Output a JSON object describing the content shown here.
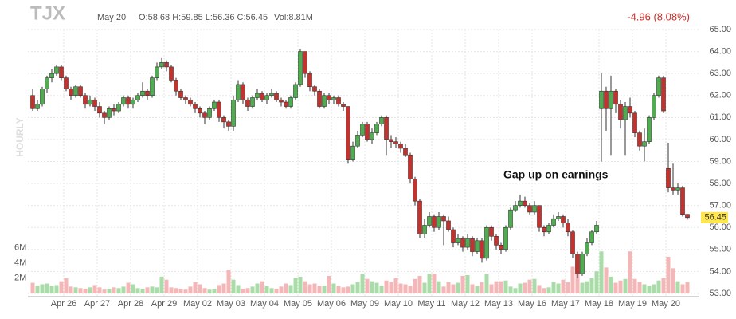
{
  "chart_data": {
    "type": "candlestick",
    "title": "TJX",
    "date": "May 20",
    "ohlc": "O:58.68 H:59.85 L:56.36 C:56.45",
    "volume_text": "Vol:8.81M",
    "change": "-4.96 (8.08%)",
    "ylabel": "HOURLY",
    "annotation": "Gap up on earnings",
    "up_color": "#4cae4c",
    "down_color": "#c9302c",
    "up_volume_color": "#aadcaa",
    "down_volume_color": "#f4b6b6",
    "ylim": [
      53,
      65
    ],
    "yticks": [
      {
        "value": 53,
        "label": "53.00"
      },
      {
        "value": 54,
        "label": "54.00"
      },
      {
        "value": 55,
        "label": "55.00"
      },
      {
        "value": 56,
        "label": "56.00"
      },
      {
        "value": 57,
        "label": "57.00"
      },
      {
        "value": 58,
        "label": "58.00"
      },
      {
        "value": 59,
        "label": "59.00"
      },
      {
        "value": 60,
        "label": "60.00"
      },
      {
        "value": 61,
        "label": "61.00"
      },
      {
        "value": 62,
        "label": "62.00"
      },
      {
        "value": 63,
        "label": "63.00"
      },
      {
        "value": 64,
        "label": "64.00"
      },
      {
        "value": 65,
        "label": "65.00"
      }
    ],
    "y2lim": [
      0,
      34.5
    ],
    "y2ticks": [
      {
        "value": 2,
        "label": "2M"
      },
      {
        "value": 4,
        "label": "4M"
      },
      {
        "value": 6,
        "label": "6M"
      }
    ],
    "categories": [
      null,
      null,
      null,
      null,
      null,
      null,
      null,
      "Apr 26",
      null,
      null,
      null,
      null,
      null,
      null,
      "Apr 27",
      null,
      null,
      null,
      null,
      null,
      null,
      "Apr 28",
      null,
      null,
      null,
      null,
      null,
      null,
      "Apr 29",
      null,
      null,
      null,
      null,
      null,
      null,
      "May 02",
      null,
      null,
      null,
      null,
      null,
      null,
      "May 03",
      null,
      null,
      null,
      null,
      null,
      null,
      "May 04",
      null,
      null,
      null,
      null,
      null,
      null,
      "May 05",
      null,
      null,
      null,
      null,
      null,
      null,
      "May 06",
      null,
      null,
      null,
      null,
      null,
      null,
      "May 09",
      null,
      null,
      null,
      null,
      null,
      null,
      "May 10",
      null,
      null,
      null,
      null,
      null,
      null,
      "May 11",
      null,
      null,
      null,
      null,
      null,
      null,
      "May 12",
      null,
      null,
      null,
      null,
      null,
      null,
      "May 13",
      null,
      null,
      null,
      null,
      null,
      null,
      "May 16",
      null,
      null,
      null,
      null,
      null,
      null,
      "May 17",
      null,
      null,
      null,
      null,
      null,
      null,
      "May 18",
      null,
      null,
      null,
      null,
      null,
      null,
      "May 19",
      null,
      null,
      null,
      null,
      null,
      null,
      "May 20",
      null,
      null,
      null,
      null
    ],
    "open": [
      62.0,
      61.4,
      61.6,
      62.3,
      62.8,
      63.0,
      63.3,
      62.8,
      62.3,
      62.0,
      62.4,
      62.0,
      61.6,
      61.8,
      61.5,
      61.2,
      61.0,
      61.4,
      61.3,
      61.6,
      61.9,
      61.6,
      61.8,
      62.0,
      62.2,
      62.0,
      62.8,
      63.3,
      63.5,
      63.3,
      62.7,
      62.2,
      61.9,
      61.8,
      61.6,
      61.4,
      61.2,
      61.0,
      61.4,
      61.7,
      61.0,
      60.8,
      60.6,
      61.8,
      62.5,
      61.8,
      61.5,
      61.9,
      62.1,
      61.8,
      62.0,
      62.1,
      61.8,
      61.7,
      61.5,
      61.9,
      62.5,
      64.0,
      63.0,
      62.4,
      62.2,
      61.5,
      62.0,
      61.8,
      61.9,
      61.6,
      61.5,
      59.1,
      59.7,
      60.2,
      60.7,
      60.0,
      60.3,
      60.7,
      61.0,
      60.0,
      59.9,
      59.8,
      59.6,
      59.3,
      58.2,
      57.2,
      55.7,
      56.1,
      56.5,
      56.0,
      56.5,
      56.3,
      55.9,
      55.3,
      55.5,
      55.1,
      55.5,
      54.9,
      55.4,
      54.6,
      56.0,
      55.6,
      55.2,
      55.0,
      56.0,
      56.8,
      57.0,
      57.2,
      57.0,
      56.7,
      57.0,
      56.0,
      55.8,
      56.1,
      56.4,
      56.5,
      56.2,
      55.8,
      54.8,
      53.9,
      54.8,
      55.3,
      55.8,
      61.4,
      62.2,
      61.4,
      62.2,
      61.6,
      60.9,
      61.5,
      61.2,
      60.3,
      59.7,
      59.9,
      61.0,
      62.0,
      62.8,
      58.68,
      57.8,
      57.7,
      57.8,
      56.6
    ],
    "close": [
      61.4,
      61.6,
      62.3,
      62.8,
      63.0,
      63.3,
      62.8,
      62.3,
      62.0,
      62.4,
      62.0,
      61.6,
      61.8,
      61.5,
      61.2,
      61.0,
      61.4,
      61.3,
      61.6,
      61.9,
      61.6,
      61.8,
      62.0,
      62.2,
      62.0,
      62.8,
      63.3,
      63.5,
      63.3,
      62.7,
      62.2,
      61.9,
      61.8,
      61.6,
      61.4,
      61.2,
      61.0,
      61.4,
      61.7,
      61.0,
      60.8,
      60.6,
      61.8,
      62.5,
      61.8,
      61.5,
      61.9,
      62.1,
      61.8,
      62.0,
      62.1,
      61.8,
      61.7,
      61.5,
      61.9,
      62.5,
      64.0,
      63.0,
      62.4,
      62.2,
      61.5,
      62.0,
      61.8,
      61.9,
      61.6,
      61.5,
      59.1,
      59.7,
      60.2,
      60.7,
      60.0,
      60.3,
      60.7,
      61.0,
      60.0,
      59.9,
      59.8,
      59.6,
      59.3,
      58.2,
      57.2,
      55.7,
      56.1,
      56.5,
      56.0,
      56.5,
      56.3,
      55.9,
      55.3,
      55.5,
      55.1,
      55.5,
      54.9,
      55.4,
      54.6,
      56.0,
      55.6,
      55.2,
      55.0,
      56.0,
      56.8,
      57.0,
      57.2,
      57.0,
      56.7,
      57.0,
      56.0,
      55.8,
      56.1,
      56.4,
      56.5,
      56.2,
      55.8,
      54.8,
      53.9,
      54.8,
      55.3,
      55.8,
      56.1,
      62.2,
      61.4,
      62.2,
      61.6,
      60.9,
      61.5,
      61.2,
      60.3,
      59.7,
      59.9,
      61.0,
      62.0,
      62.8,
      61.3,
      57.8,
      57.7,
      57.8,
      56.6,
      56.45
    ],
    "high": [
      62.3,
      61.8,
      62.4,
      62.9,
      63.2,
      63.4,
      63.4,
      62.9,
      62.4,
      62.5,
      62.5,
      62.1,
      62.0,
      61.9,
      61.7,
      61.3,
      61.5,
      61.6,
      61.7,
      62.0,
      62.0,
      61.9,
      62.1,
      62.6,
      62.3,
      62.9,
      63.5,
      63.7,
      63.6,
      63.4,
      62.8,
      62.3,
      62.0,
      61.9,
      61.7,
      61.5,
      61.3,
      61.5,
      61.8,
      61.8,
      61.1,
      60.9,
      62.0,
      62.7,
      62.6,
      61.9,
      62.0,
      62.3,
      62.2,
      62.1,
      62.3,
      62.2,
      61.9,
      61.8,
      62.0,
      62.6,
      64.1,
      64.0,
      63.1,
      62.5,
      62.3,
      62.1,
      62.1,
      62.0,
      62.0,
      61.7,
      61.5,
      59.9,
      60.4,
      60.8,
      60.8,
      60.5,
      60.8,
      61.1,
      61.1,
      60.2,
      60.1,
      59.9,
      59.8,
      59.4,
      58.3,
      57.3,
      56.4,
      56.7,
      56.6,
      56.7,
      56.6,
      56.5,
      56.0,
      55.7,
      55.6,
      55.7,
      55.6,
      55.5,
      55.5,
      56.1,
      56.1,
      55.7,
      55.3,
      56.1,
      56.9,
      57.2,
      57.5,
      57.4,
      57.1,
      57.2,
      57.0,
      56.1,
      56.2,
      56.6,
      56.7,
      56.6,
      56.4,
      55.9,
      54.9,
      54.9,
      55.5,
      55.9,
      56.3,
      63.0,
      62.4,
      62.9,
      62.3,
      61.8,
      61.7,
      61.9,
      61.3,
      60.4,
      60.5,
      61.1,
      62.1,
      62.9,
      62.9,
      59.85,
      58.9,
      58.0,
      57.9,
      56.6
    ],
    "low": [
      61.3,
      61.3,
      61.5,
      62.1,
      62.6,
      62.9,
      62.7,
      62.2,
      61.8,
      61.9,
      61.9,
      61.4,
      61.5,
      61.3,
      61.0,
      60.7,
      60.9,
      61.1,
      61.2,
      61.5,
      61.4,
      61.4,
      61.7,
      61.9,
      61.8,
      61.9,
      62.7,
      63.2,
      63.1,
      62.6,
      62.0,
      61.8,
      61.6,
      61.5,
      61.2,
      61.0,
      60.7,
      60.9,
      61.3,
      60.8,
      60.5,
      60.4,
      60.4,
      61.7,
      61.6,
      61.3,
      61.4,
      61.8,
      61.7,
      61.6,
      61.9,
      61.7,
      61.5,
      61.4,
      61.4,
      61.8,
      62.4,
      62.8,
      62.2,
      62.0,
      61.4,
      61.4,
      61.6,
      61.6,
      61.5,
      61.3,
      58.9,
      59.0,
      59.6,
      60.1,
      59.9,
      59.8,
      60.2,
      60.6,
      59.3,
      59.6,
      59.6,
      59.4,
      59.2,
      58.0,
      57.0,
      55.5,
      55.5,
      56.0,
      55.8,
      55.9,
      55.2,
      55.8,
      55.1,
      55.2,
      54.9,
      55.0,
      54.7,
      54.8,
      54.4,
      54.5,
      55.4,
      55.0,
      54.8,
      54.9,
      55.9,
      56.7,
      56.9,
      56.9,
      56.6,
      56.6,
      55.8,
      55.6,
      55.7,
      56.0,
      56.3,
      56.0,
      55.6,
      54.6,
      53.7,
      53.8,
      54.7,
      55.2,
      55.7,
      59.0,
      60.4,
      59.3,
      61.2,
      60.5,
      59.3,
      61.0,
      60.1,
      59.5,
      59.0,
      59.8,
      60.9,
      61.9,
      61.2,
      57.6,
      57.5,
      57.5,
      56.5,
      56.36
    ],
    "volume": [
      1.4,
      1.0,
      1.2,
      1.3,
      1.0,
      1.1,
      1.6,
      2.0,
      0.9,
      0.8,
      0.7,
      0.6,
      0.8,
      1.1,
      0.8,
      0.5,
      0.6,
      0.8,
      0.7,
      0.9,
      1.4,
      1.2,
      0.7,
      0.6,
      0.8,
      0.9,
      0.8,
      2.2,
      1.8,
      0.8,
      0.7,
      0.6,
      0.5,
      0.9,
      1.5,
      1.2,
      0.7,
      0.5,
      0.6,
      1.1,
      1.3,
      3.1,
      1.8,
      1.1,
      0.6,
      0.7,
      0.9,
      1.3,
      1.6,
      1.0,
      0.7,
      0.6,
      0.9,
      1.3,
      1.1,
      2.0,
      2.2,
      1.6,
      1.2,
      1.3,
      1.0,
      1.0,
      2.3,
      1.3,
      1.0,
      0.8,
      0.9,
      1.2,
      1.5,
      2.5,
      1.9,
      1.6,
      1.4,
      1.0,
      1.7,
      1.5,
      2.0,
      1.3,
      1.2,
      1.0,
      1.9,
      2.3,
      1.4,
      2.6,
      2.6,
      1.6,
      0.9,
      1.5,
      1.2,
      1.4,
      2.3,
      2.4,
      1.2,
      1.0,
      1.5,
      2.5,
      1.2,
      1.6,
      1.6,
      1.7,
      0.9,
      0.7,
      1.3,
      1.4,
      1.8,
      1.9,
      1.1,
      0.7,
      0.8,
      1.5,
      1.3,
      1.8,
      1.5,
      3.5,
      2.6,
      1.4,
      1.6,
      2.0,
      2.9,
      5.5,
      3.4,
      2.2,
      1.4,
      1.7,
      1.9,
      5.5,
      1.9,
      1.5,
      1.2,
      1.0,
      1.2,
      1.7,
      2.0,
      4.8,
      3.3,
      1.6,
      1.2,
      1.5
    ]
  }
}
